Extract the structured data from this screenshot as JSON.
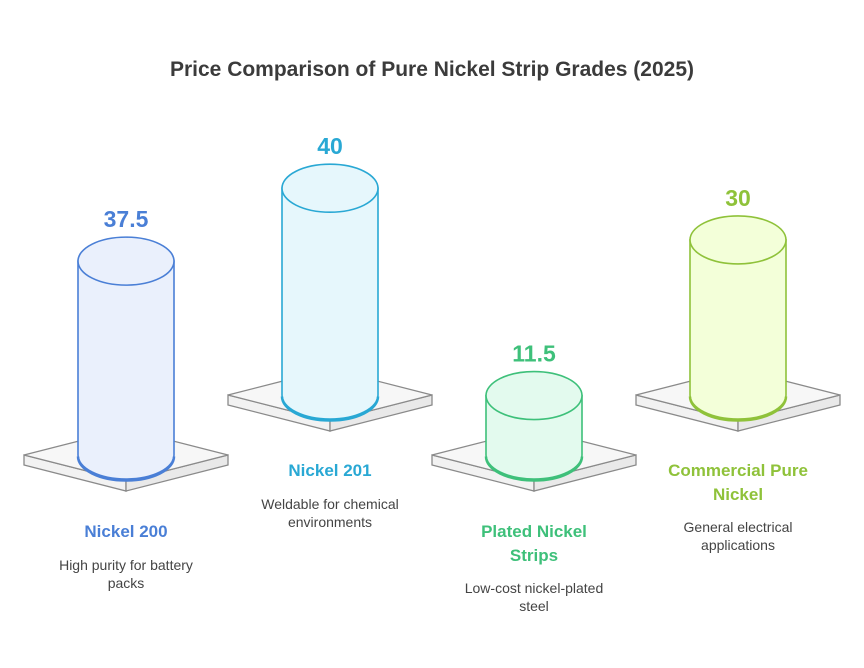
{
  "chart_data": {
    "type": "bar",
    "title": "Price Comparison of Pure Nickel Strip Grades (2025)",
    "categories": [
      "Nickel 200",
      "Nickel 201",
      "Plated Nickel Strips",
      "Commercial Pure Nickel"
    ],
    "values": [
      37.5,
      40,
      11.5,
      30
    ],
    "value_labels": [
      "37.5",
      "40",
      "11.5",
      "30"
    ],
    "descriptions": [
      "High purity for battery packs",
      "Weldable for chemical environments",
      "Low-cost nickel-plated steel",
      "General electrical applications"
    ],
    "colors": [
      "#4a7fd6",
      "#29a8d4",
      "#3ec07a",
      "#8fc23a"
    ],
    "fills": [
      "#eaf0fc",
      "#e6f7fc",
      "#e3faee",
      "#f3ffd9"
    ]
  }
}
